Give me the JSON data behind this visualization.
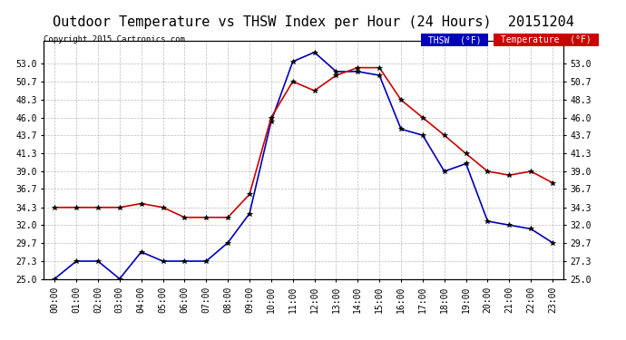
{
  "title": "Outdoor Temperature vs THSW Index per Hour (24 Hours)  20151204",
  "copyright": "Copyright 2015 Cartronics.com",
  "hours": [
    "00:00",
    "01:00",
    "02:00",
    "03:00",
    "04:00",
    "05:00",
    "06:00",
    "07:00",
    "08:00",
    "09:00",
    "10:00",
    "11:00",
    "12:00",
    "13:00",
    "14:00",
    "15:00",
    "16:00",
    "17:00",
    "18:00",
    "19:00",
    "20:00",
    "21:00",
    "22:00",
    "23:00"
  ],
  "thsw": [
    25.0,
    27.3,
    27.3,
    25.0,
    28.5,
    27.3,
    27.3,
    27.3,
    29.7,
    33.5,
    45.5,
    53.3,
    54.5,
    52.0,
    52.0,
    51.5,
    44.5,
    43.7,
    39.0,
    40.0,
    32.5,
    32.0,
    31.5,
    29.7
  ],
  "temperature": [
    34.3,
    34.3,
    34.3,
    34.3,
    34.8,
    34.3,
    33.0,
    33.0,
    33.0,
    36.0,
    46.0,
    50.7,
    49.5,
    51.5,
    52.5,
    52.5,
    48.3,
    46.0,
    43.7,
    41.3,
    39.0,
    38.5,
    39.0,
    37.5
  ],
  "thsw_color": "#0000bb",
  "temp_color": "#cc0000",
  "background_color": "#ffffff",
  "grid_color": "#bbbbbb",
  "ylim": [
    25.0,
    56.0
  ],
  "yticks": [
    25.0,
    27.3,
    29.7,
    32.0,
    34.3,
    36.7,
    39.0,
    41.3,
    43.7,
    46.0,
    48.3,
    50.7,
    53.0
  ],
  "legend_thsw_bg": "#0000bb",
  "legend_temp_bg": "#cc0000",
  "title_fontsize": 11,
  "marker": "*",
  "marker_size": 4,
  "line_width": 1.2
}
